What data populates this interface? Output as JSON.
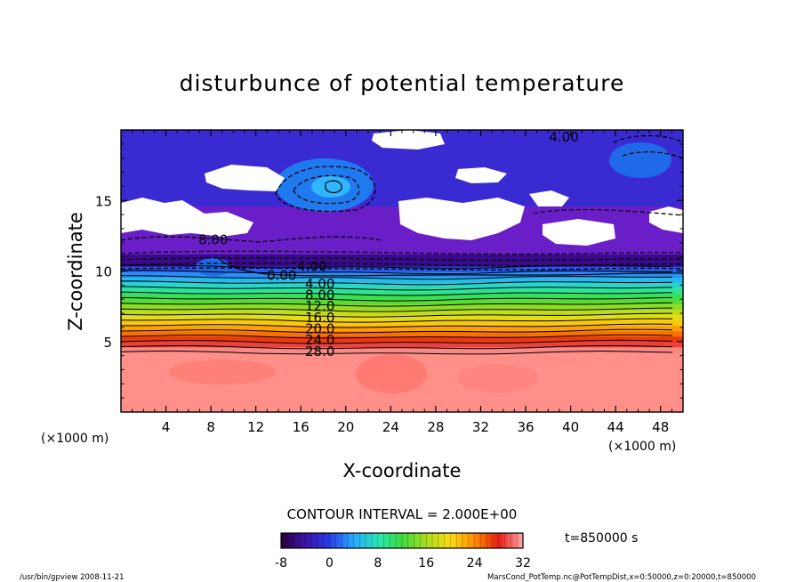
{
  "chart_data": {
    "type": "heatmap",
    "title": "disturbunce of potential temperature",
    "xlabel": "X-coordinate",
    "ylabel": "Z-coordinate",
    "x_unit_left": "(×1000 m)",
    "x_unit_right": "(×1000 m)",
    "xlim": [
      0,
      50
    ],
    "ylim": [
      0,
      20
    ],
    "x_ticks": [
      "4",
      "8",
      "12",
      "16",
      "20",
      "24",
      "28",
      "32",
      "36",
      "40",
      "44",
      "48"
    ],
    "y_ticks": [
      "5",
      "10",
      "15"
    ],
    "x_tick_values": [
      4,
      8,
      12,
      16,
      20,
      24,
      28,
      32,
      36,
      40,
      44,
      48
    ],
    "y_tick_values": [
      5,
      10,
      15
    ],
    "contour_interval_text": "CONTOUR INTERVAL = 2.000E+00",
    "time_text": "t=850000 s",
    "colorbar": {
      "min": -8,
      "max": 32,
      "ticks": [
        "-8",
        "0",
        "8",
        "16",
        "24",
        "32"
      ],
      "tick_values": [
        -8,
        0,
        8,
        16,
        24,
        32
      ]
    },
    "contour_labels": [
      {
        "text": "28.0",
        "x": 17.7,
        "z": 4.3
      },
      {
        "text": "24.0",
        "x": 17.7,
        "z": 5.1
      },
      {
        "text": "20.0",
        "x": 17.7,
        "z": 5.9
      },
      {
        "text": "16.0",
        "x": 17.7,
        "z": 6.7
      },
      {
        "text": "12.0",
        "x": 17.7,
        "z": 7.5
      },
      {
        "text": "8.00",
        "x": 17.7,
        "z": 8.3
      },
      {
        "text": "4.00",
        "x": 17.7,
        "z": 9.1
      },
      {
        "text": "0.00",
        "x": 14.3,
        "z": 9.7
      },
      {
        "text": "4.00",
        "x": 17.0,
        "z": 10.3
      },
      {
        "text": "8.00",
        "x": 8.2,
        "z": 12.2
      },
      {
        "text": "4.00",
        "x": 39.4,
        "z": 19.5
      }
    ]
  },
  "footer": {
    "left": "/usr/bin/gpview   2008-11-21",
    "right": "MarsCond_PotTemp.nc@PotTempDist,x=0:50000,z=0:20000,t=850000"
  }
}
